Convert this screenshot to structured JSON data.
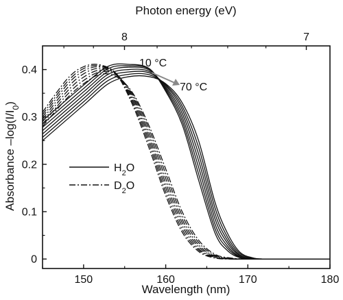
{
  "chart_data": {
    "type": "line",
    "title": "",
    "xlabel": "Wavelength (nm)",
    "ylabel": "Absorbance –log(I/I0)",
    "xlim": [
      145,
      180
    ],
    "ylim": [
      -0.02,
      0.45
    ],
    "xticks": [
      150,
      160,
      170,
      180
    ],
    "yticks": [
      0,
      0.1,
      0.2,
      0.3,
      0.4
    ],
    "xticklabels": [
      "150",
      "160",
      "170",
      "180"
    ],
    "yticklabels": [
      "0",
      "0.1",
      "0.2",
      "0.3",
      "0.4"
    ],
    "top_axis": {
      "label": "Photon energy (eV)",
      "ticks": [
        8,
        7
      ],
      "ticklabels": [
        "8",
        "7"
      ],
      "tick_wavelengths_nm": [
        154.98,
        177.12
      ]
    },
    "grid": false,
    "legend": {
      "placement": "center-left",
      "entries": [
        {
          "label": "H2O",
          "linestyle": "solid"
        },
        {
          "label": "D2O",
          "linestyle": "dash-dot"
        }
      ]
    },
    "annotations": [
      {
        "text": "10 °C"
      },
      {
        "text": "70 °C"
      }
    ],
    "series": [
      {
        "group": "H2O",
        "temperature_c": 10,
        "style": "solid",
        "x": [
          145,
          150,
          153,
          155.5,
          158,
          160,
          162,
          164,
          166,
          167.5,
          169,
          170.5,
          172,
          176,
          180
        ],
        "y": [
          0.25,
          0.325,
          0.37,
          0.385,
          0.385,
          0.37,
          0.33,
          0.25,
          0.12,
          0.055,
          0.015,
          0.003,
          0,
          0,
          0
        ]
      },
      {
        "group": "H2O",
        "temperature_c": 20,
        "style": "solid",
        "x": [
          145,
          150,
          153,
          155.5,
          158,
          160,
          162,
          164,
          166,
          167.5,
          169,
          170.5,
          172,
          176,
          180
        ],
        "y": [
          0.257,
          0.332,
          0.377,
          0.39,
          0.389,
          0.368,
          0.323,
          0.236,
          0.108,
          0.047,
          0.012,
          0.002,
          0,
          0,
          0
        ]
      },
      {
        "group": "H2O",
        "temperature_c": 30,
        "style": "solid",
        "x": [
          145,
          150,
          153,
          155.5,
          158,
          160,
          162,
          164,
          166,
          167.5,
          169,
          170.5,
          172,
          176,
          180
        ],
        "y": [
          0.264,
          0.339,
          0.384,
          0.395,
          0.393,
          0.366,
          0.316,
          0.222,
          0.096,
          0.04,
          0.009,
          0.001,
          0,
          0,
          0
        ]
      },
      {
        "group": "H2O",
        "temperature_c": 40,
        "style": "solid",
        "x": [
          145,
          150,
          153,
          155.5,
          158,
          160,
          162,
          164,
          166,
          167.5,
          169,
          170.5,
          172,
          176,
          180
        ],
        "y": [
          0.271,
          0.346,
          0.39,
          0.4,
          0.396,
          0.363,
          0.308,
          0.208,
          0.085,
          0.034,
          0.007,
          0.001,
          0,
          0,
          0
        ]
      },
      {
        "group": "H2O",
        "temperature_c": 50,
        "style": "solid",
        "x": [
          145,
          150,
          153,
          155.5,
          158,
          160,
          162,
          164,
          166,
          167.5,
          169,
          170.5,
          172,
          176,
          180
        ],
        "y": [
          0.278,
          0.353,
          0.396,
          0.405,
          0.399,
          0.36,
          0.3,
          0.194,
          0.074,
          0.028,
          0.005,
          0,
          0,
          0,
          0
        ]
      },
      {
        "group": "H2O",
        "temperature_c": 60,
        "style": "solid",
        "x": [
          145,
          150,
          153,
          155.5,
          158,
          160,
          162,
          164,
          166,
          167.5,
          169,
          170.5,
          172,
          176,
          180
        ],
        "y": [
          0.285,
          0.36,
          0.402,
          0.408,
          0.401,
          0.357,
          0.292,
          0.18,
          0.064,
          0.023,
          0.004,
          0,
          0,
          0,
          0
        ]
      },
      {
        "group": "H2O",
        "temperature_c": 70,
        "style": "solid",
        "x": [
          145,
          150,
          153,
          155.5,
          158,
          160,
          162,
          164,
          166,
          167.5,
          169,
          170.5,
          172,
          176,
          180
        ],
        "y": [
          0.292,
          0.367,
          0.407,
          0.411,
          0.402,
          0.354,
          0.284,
          0.167,
          0.055,
          0.018,
          0.003,
          0,
          0,
          0,
          0
        ]
      },
      {
        "group": "D2O",
        "temperature_c": 10,
        "style": "dash-dot",
        "x": [
          145,
          148,
          150,
          152,
          154,
          156,
          158,
          160,
          162,
          164,
          166,
          168,
          170,
          174,
          180
        ],
        "y": [
          0.28,
          0.34,
          0.37,
          0.39,
          0.385,
          0.35,
          0.28,
          0.19,
          0.1,
          0.04,
          0.01,
          0.002,
          0,
          0,
          0
        ]
      },
      {
        "group": "D2O",
        "temperature_c": 20,
        "style": "dash-dot",
        "x": [
          145,
          148,
          150,
          152,
          154,
          156,
          158,
          160,
          162,
          164,
          166,
          168,
          170,
          174,
          180
        ],
        "y": [
          0.285,
          0.347,
          0.377,
          0.395,
          0.388,
          0.347,
          0.273,
          0.18,
          0.092,
          0.035,
          0.008,
          0.001,
          0,
          0,
          0
        ]
      },
      {
        "group": "D2O",
        "temperature_c": 30,
        "style": "dash-dot",
        "x": [
          145,
          148,
          150,
          152,
          154,
          156,
          158,
          160,
          162,
          164,
          166,
          168,
          170,
          174,
          180
        ],
        "y": [
          0.29,
          0.354,
          0.384,
          0.399,
          0.39,
          0.343,
          0.265,
          0.17,
          0.084,
          0.03,
          0.006,
          0.001,
          0,
          0,
          0
        ]
      },
      {
        "group": "D2O",
        "temperature_c": 40,
        "style": "dash-dot",
        "x": [
          145,
          148,
          150,
          152,
          154,
          156,
          158,
          160,
          162,
          164,
          166,
          168,
          170,
          174,
          180
        ],
        "y": [
          0.295,
          0.361,
          0.391,
          0.403,
          0.391,
          0.339,
          0.257,
          0.16,
          0.077,
          0.026,
          0.005,
          0,
          0,
          0,
          0
        ]
      },
      {
        "group": "D2O",
        "temperature_c": 50,
        "style": "dash-dot",
        "x": [
          145,
          148,
          150,
          152,
          154,
          156,
          158,
          160,
          162,
          164,
          166,
          168,
          170,
          174,
          180
        ],
        "y": [
          0.3,
          0.368,
          0.397,
          0.406,
          0.391,
          0.334,
          0.249,
          0.151,
          0.07,
          0.022,
          0.004,
          0,
          0,
          0,
          0
        ]
      },
      {
        "group": "D2O",
        "temperature_c": 60,
        "style": "dash-dot",
        "x": [
          145,
          148,
          150,
          152,
          154,
          156,
          158,
          160,
          162,
          164,
          166,
          168,
          170,
          174,
          180
        ],
        "y": [
          0.305,
          0.374,
          0.402,
          0.408,
          0.391,
          0.329,
          0.241,
          0.142,
          0.063,
          0.019,
          0.003,
          0,
          0,
          0,
          0
        ]
      },
      {
        "group": "D2O",
        "temperature_c": 70,
        "style": "dash-dot",
        "x": [
          145,
          148,
          150,
          152,
          154,
          156,
          158,
          160,
          162,
          164,
          166,
          168,
          170,
          174,
          180
        ],
        "y": [
          0.31,
          0.38,
          0.406,
          0.41,
          0.39,
          0.324,
          0.233,
          0.134,
          0.057,
          0.016,
          0.002,
          0,
          0,
          0,
          0
        ]
      }
    ]
  }
}
